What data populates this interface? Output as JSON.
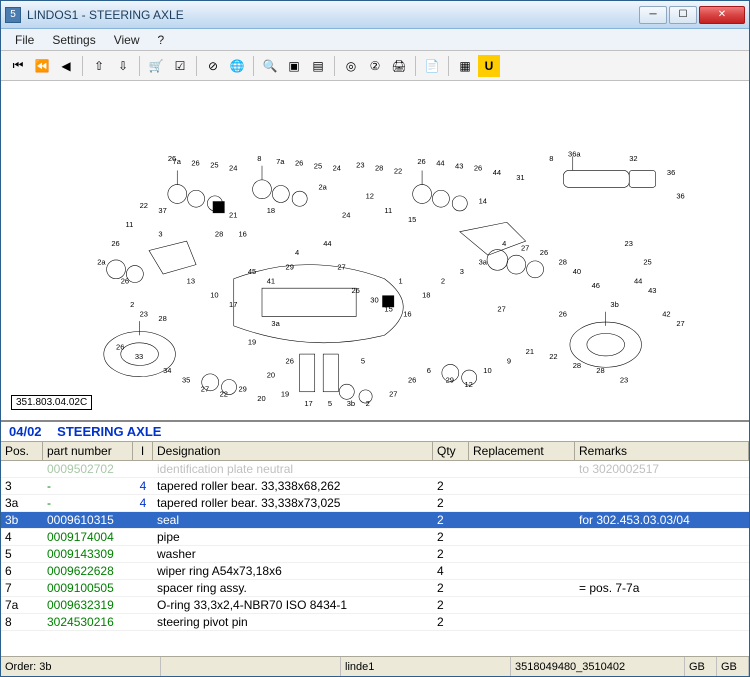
{
  "window": {
    "title": "LINDOS1 - STEERING AXLE",
    "icon_text": "5"
  },
  "menubar": [
    "File",
    "Settings",
    "View",
    "?"
  ],
  "toolbar_icons": [
    {
      "name": "first",
      "glyph": "⏮",
      "sep": false
    },
    {
      "name": "prev-fast",
      "glyph": "⏪",
      "sep": false
    },
    {
      "name": "prev",
      "glyph": "◀",
      "sep": true
    },
    {
      "name": "nav-up",
      "glyph": "⇧",
      "sep": false
    },
    {
      "name": "nav-down",
      "glyph": "⇩",
      "sep": true
    },
    {
      "name": "cart",
      "glyph": "🛒",
      "sep": false
    },
    {
      "name": "check",
      "glyph": "☑",
      "sep": true
    },
    {
      "name": "geo-off",
      "glyph": "⊘",
      "sep": false
    },
    {
      "name": "globe",
      "glyph": "🌐",
      "sep": true
    },
    {
      "name": "zoom",
      "glyph": "🔍",
      "sep": false
    },
    {
      "name": "box1",
      "glyph": "▣",
      "sep": false
    },
    {
      "name": "box2",
      "glyph": "▤",
      "sep": true
    },
    {
      "name": "target",
      "glyph": "◎",
      "sep": false
    },
    {
      "name": "num",
      "glyph": "②",
      "sep": false
    },
    {
      "name": "print",
      "glyph": "🖨",
      "sep": true
    },
    {
      "name": "doc",
      "glyph": "📄",
      "sep": true
    },
    {
      "name": "flag",
      "glyph": "▦",
      "sep": false
    },
    {
      "name": "u-btn",
      "glyph": "U",
      "sep": false
    }
  ],
  "diagram": {
    "label": "351.803.04.02C",
    "callouts": [
      "7a",
      "26",
      "25",
      "24",
      "8",
      "7a",
      "26",
      "25",
      "24",
      "23",
      "28",
      "22",
      "26",
      "44",
      "43",
      "26",
      "44",
      "31",
      "8",
      "36a",
      "32",
      "36",
      "36",
      "22",
      "37",
      "26",
      "2a",
      "26",
      "23",
      "28",
      "28",
      "21",
      "45",
      "41",
      "29",
      "44",
      "27",
      "26",
      "30",
      "15",
      "16",
      "18",
      "2",
      "3",
      "3a",
      "4",
      "27",
      "26",
      "28",
      "40",
      "46",
      "3b",
      "44",
      "43",
      "42",
      "27",
      "26",
      "33",
      "34",
      "35",
      "27",
      "22",
      "29",
      "20",
      "19",
      "17",
      "5",
      "3b",
      "2",
      "27",
      "26",
      "6",
      "29",
      "12",
      "10",
      "9",
      "21",
      "22",
      "28",
      "28",
      "23",
      "26",
      "2a",
      "15",
      "16",
      "18",
      "1",
      "5",
      "4",
      "3a",
      "3",
      "2",
      "27",
      "26",
      "23",
      "25",
      "24",
      "12",
      "11",
      "13",
      "10",
      "17",
      "19",
      "20",
      "26",
      "14",
      "11",
      "13",
      "7",
      "2",
      "6",
      "26",
      "7",
      "8",
      "24",
      "25",
      "26"
    ]
  },
  "table": {
    "title_code": "04/02",
    "title_name": "STEERING AXLE",
    "columns": [
      "Pos.",
      "part number",
      "I",
      "Designation",
      "Qty",
      "Replacement",
      "Remarks"
    ],
    "rows": [
      {
        "pos": "",
        "pn": "0009502702",
        "i": "",
        "des": "identification plate neutral",
        "qty": "",
        "rep": "",
        "rem": "to 3020002517",
        "faded": true,
        "sel": false
      },
      {
        "pos": "3",
        "pn": "-",
        "i": "4",
        "des": "tapered roller bear. 33,338x68,262",
        "qty": "2",
        "rep": "",
        "rem": "",
        "faded": false,
        "sel": false
      },
      {
        "pos": "3a",
        "pn": "-",
        "i": "4",
        "des": "tapered roller bear. 33,338x73,025",
        "qty": "2",
        "rep": "",
        "rem": "",
        "faded": false,
        "sel": false
      },
      {
        "pos": "3b",
        "pn": "0009610315",
        "i": "",
        "des": "seal",
        "qty": "2",
        "rep": "",
        "rem": "for 302.453.03.03/04",
        "faded": false,
        "sel": true
      },
      {
        "pos": "4",
        "pn": "0009174004",
        "i": "",
        "des": "pipe",
        "qty": "2",
        "rep": "",
        "rem": "",
        "faded": false,
        "sel": false
      },
      {
        "pos": "5",
        "pn": "0009143309",
        "i": "",
        "des": "washer",
        "qty": "2",
        "rep": "",
        "rem": "",
        "faded": false,
        "sel": false
      },
      {
        "pos": "6",
        "pn": "0009622628",
        "i": "",
        "des": "wiper ring A54x73,18x6",
        "qty": "4",
        "rep": "",
        "rem": "",
        "faded": false,
        "sel": false
      },
      {
        "pos": "7",
        "pn": "0009100505",
        "i": "",
        "des": "spacer ring assy.",
        "qty": "2",
        "rep": "",
        "rem": "= pos. 7-7a",
        "faded": false,
        "sel": false
      },
      {
        "pos": "7a",
        "pn": "0009632319",
        "i": "",
        "des": "O-ring 33,3x2,4-NBR70  ISO 8434-1",
        "qty": "2",
        "rep": "",
        "rem": "",
        "faded": false,
        "sel": false
      },
      {
        "pos": "8",
        "pn": "3024530216",
        "i": "",
        "des": "steering pivot pin",
        "qty": "2",
        "rep": "",
        "rem": "",
        "faded": false,
        "sel": false
      }
    ]
  },
  "statusbar": {
    "order": "Order: 3b",
    "s2": "",
    "s3": "linde1",
    "s4": "3518049480_3510402",
    "s5": "GB",
    "s6": "GB"
  },
  "colors": {
    "selected_row": "#3169c6",
    "part_number": "#008000",
    "link_blue": "#0033cc",
    "header_bg": "#ece9d8"
  }
}
